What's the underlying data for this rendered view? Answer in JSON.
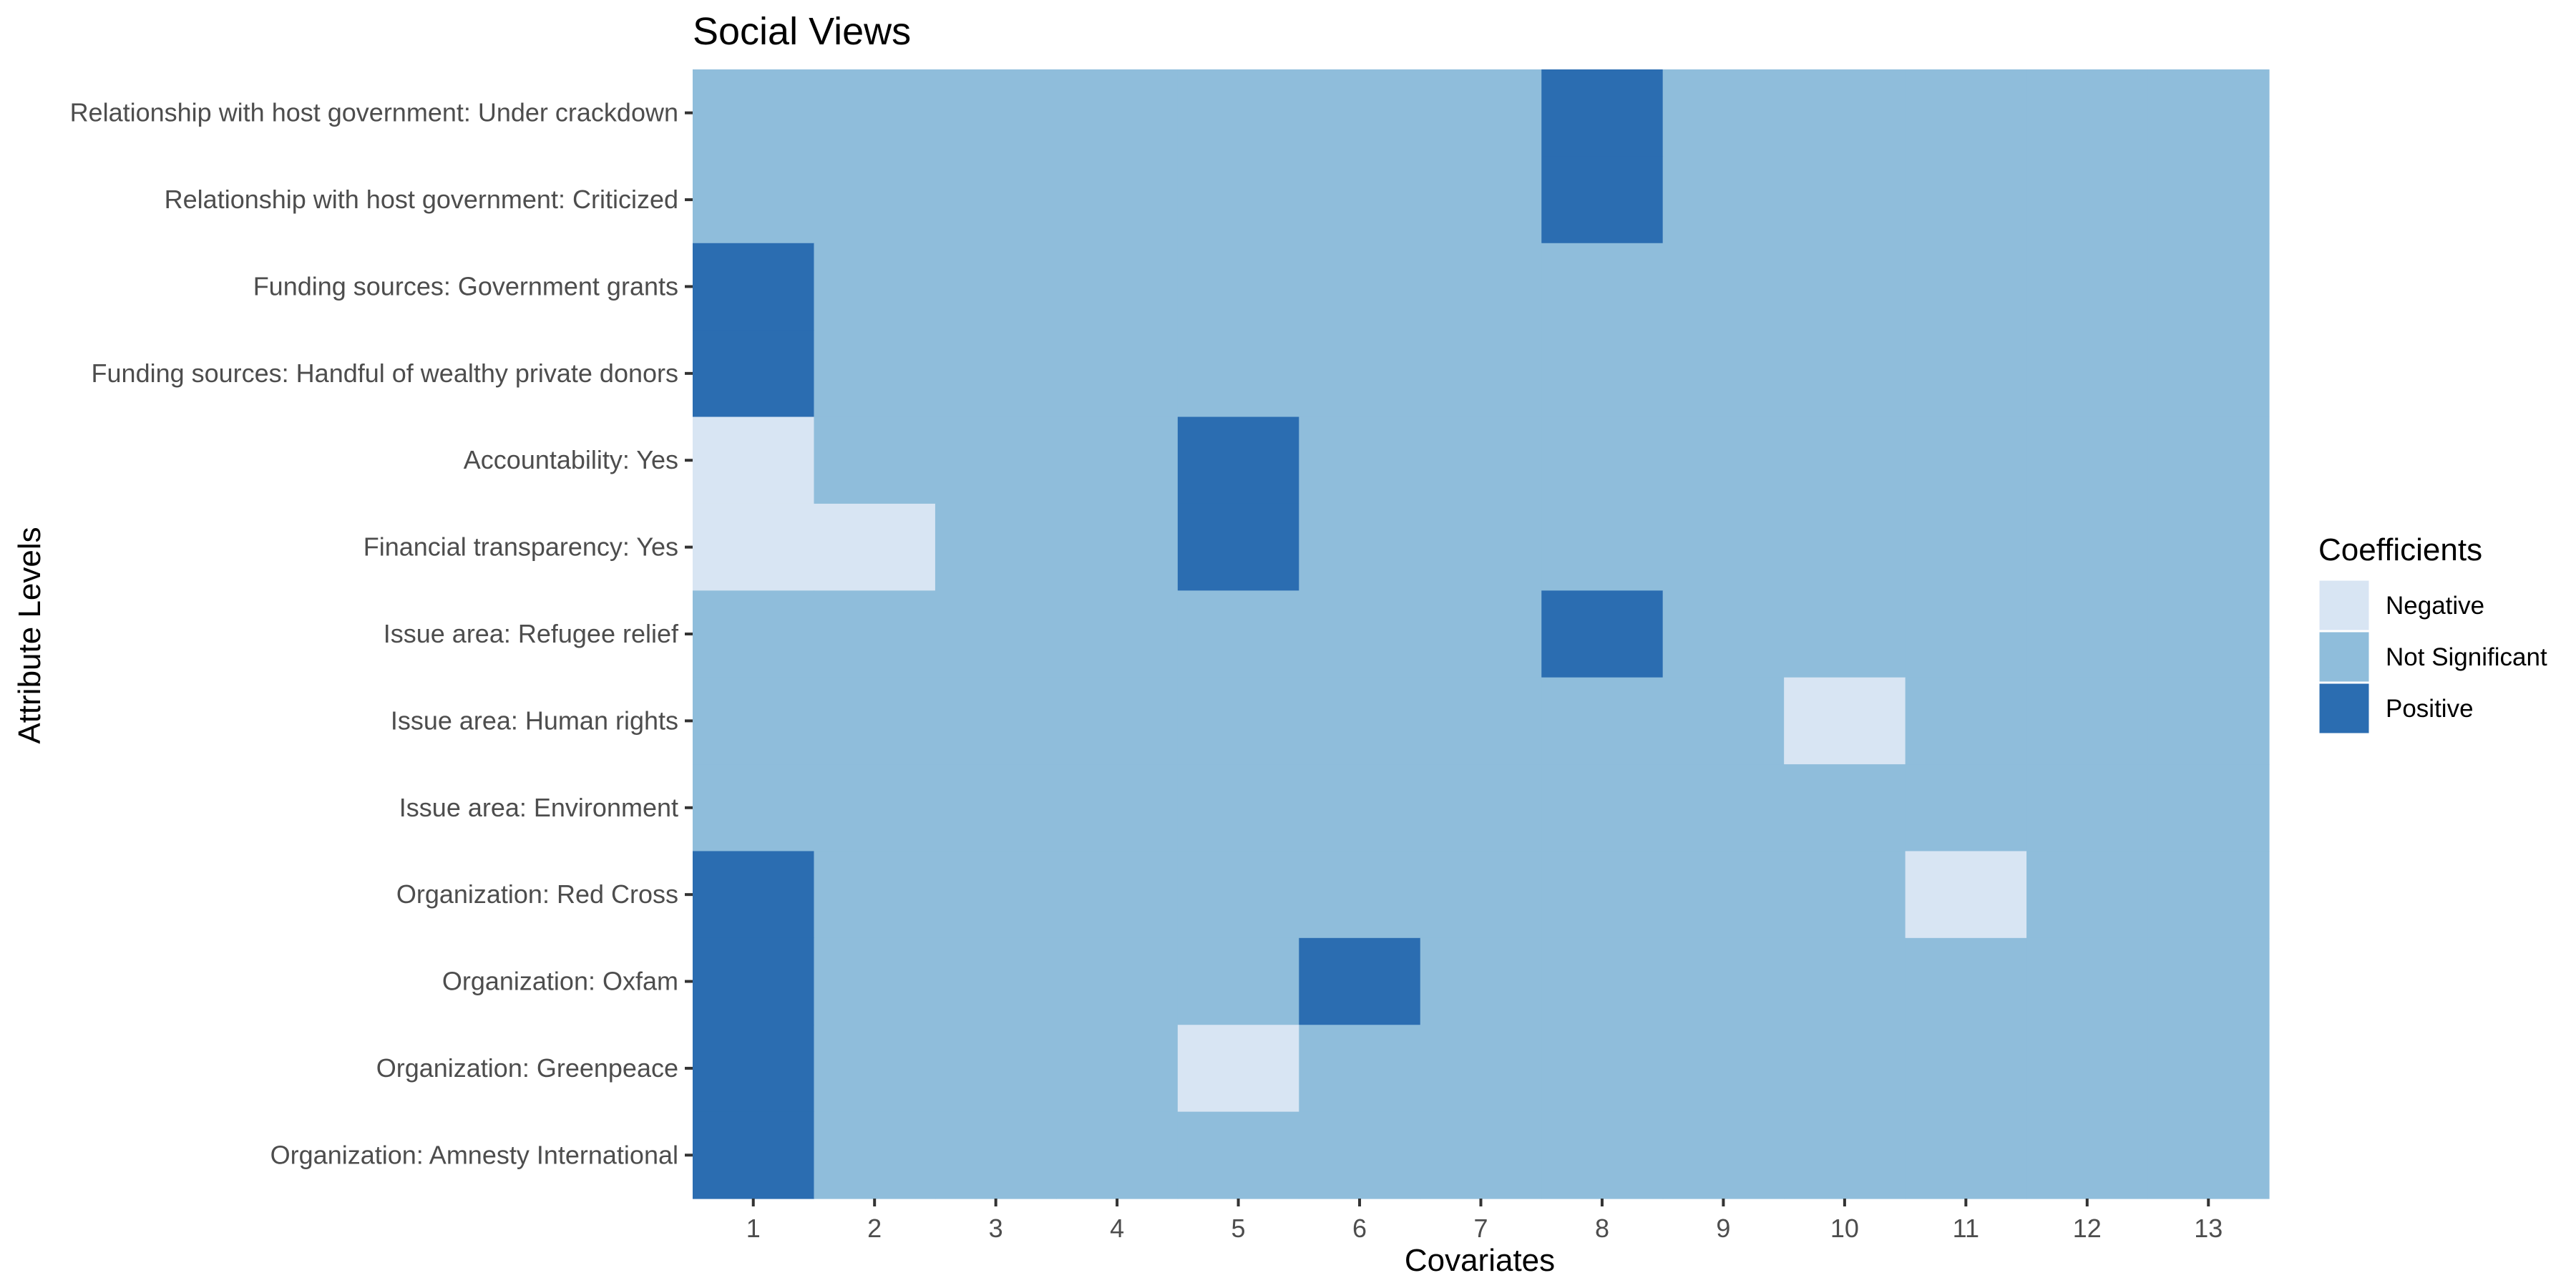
{
  "chart_data": {
    "type": "heatmap",
    "title": "Social Views",
    "xlabel": "Covariates",
    "ylabel": "Attribute Levels",
    "x_categories": [
      "1",
      "2",
      "3",
      "4",
      "5",
      "6",
      "7",
      "8",
      "9",
      "10",
      "11",
      "12",
      "13"
    ],
    "y_categories": [
      "Relationship with host government: Under crackdown",
      "Relationship with host government: Criticized",
      "Funding sources: Government grants",
      "Funding sources: Handful of wealthy private donors",
      "Accountability: Yes",
      "Financial transparency: Yes",
      "Issue area: Refugee relief",
      "Issue area: Human rights",
      "Issue area: Environment",
      "Organization: Red Cross",
      "Organization: Oxfam",
      "Organization: Greenpeace",
      "Organization: Amnesty International"
    ],
    "values": [
      [
        "Not Significant",
        "Not Significant",
        "Not Significant",
        "Not Significant",
        "Not Significant",
        "Not Significant",
        "Not Significant",
        "Positive",
        "Not Significant",
        "Not Significant",
        "Not Significant",
        "Not Significant",
        "Not Significant"
      ],
      [
        "Not Significant",
        "Not Significant",
        "Not Significant",
        "Not Significant",
        "Not Significant",
        "Not Significant",
        "Not Significant",
        "Positive",
        "Not Significant",
        "Not Significant",
        "Not Significant",
        "Not Significant",
        "Not Significant"
      ],
      [
        "Positive",
        "Not Significant",
        "Not Significant",
        "Not Significant",
        "Not Significant",
        "Not Significant",
        "Not Significant",
        "Not Significant",
        "Not Significant",
        "Not Significant",
        "Not Significant",
        "Not Significant",
        "Not Significant"
      ],
      [
        "Positive",
        "Not Significant",
        "Not Significant",
        "Not Significant",
        "Not Significant",
        "Not Significant",
        "Not Significant",
        "Not Significant",
        "Not Significant",
        "Not Significant",
        "Not Significant",
        "Not Significant",
        "Not Significant"
      ],
      [
        "Negative",
        "Not Significant",
        "Not Significant",
        "Not Significant",
        "Positive",
        "Not Significant",
        "Not Significant",
        "Not Significant",
        "Not Significant",
        "Not Significant",
        "Not Significant",
        "Not Significant",
        "Not Significant"
      ],
      [
        "Negative",
        "Negative",
        "Not Significant",
        "Not Significant",
        "Positive",
        "Not Significant",
        "Not Significant",
        "Not Significant",
        "Not Significant",
        "Not Significant",
        "Not Significant",
        "Not Significant",
        "Not Significant"
      ],
      [
        "Not Significant",
        "Not Significant",
        "Not Significant",
        "Not Significant",
        "Not Significant",
        "Not Significant",
        "Not Significant",
        "Positive",
        "Not Significant",
        "Not Significant",
        "Not Significant",
        "Not Significant",
        "Not Significant"
      ],
      [
        "Not Significant",
        "Not Significant",
        "Not Significant",
        "Not Significant",
        "Not Significant",
        "Not Significant",
        "Not Significant",
        "Not Significant",
        "Not Significant",
        "Negative",
        "Not Significant",
        "Not Significant",
        "Not Significant"
      ],
      [
        "Not Significant",
        "Not Significant",
        "Not Significant",
        "Not Significant",
        "Not Significant",
        "Not Significant",
        "Not Significant",
        "Not Significant",
        "Not Significant",
        "Not Significant",
        "Not Significant",
        "Not Significant",
        "Not Significant"
      ],
      [
        "Positive",
        "Not Significant",
        "Not Significant",
        "Not Significant",
        "Not Significant",
        "Not Significant",
        "Not Significant",
        "Not Significant",
        "Not Significant",
        "Not Significant",
        "Negative",
        "Not Significant",
        "Not Significant"
      ],
      [
        "Positive",
        "Not Significant",
        "Not Significant",
        "Not Significant",
        "Not Significant",
        "Positive",
        "Not Significant",
        "Not Significant",
        "Not Significant",
        "Not Significant",
        "Not Significant",
        "Not Significant",
        "Not Significant"
      ],
      [
        "Positive",
        "Not Significant",
        "Not Significant",
        "Not Significant",
        "Negative",
        "Not Significant",
        "Not Significant",
        "Not Significant",
        "Not Significant",
        "Not Significant",
        "Not Significant",
        "Not Significant",
        "Not Significant"
      ],
      [
        "Positive",
        "Not Significant",
        "Not Significant",
        "Not Significant",
        "Not Significant",
        "Not Significant",
        "Not Significant",
        "Not Significant",
        "Not Significant",
        "Not Significant",
        "Not Significant",
        "Not Significant",
        "Not Significant"
      ]
    ],
    "legend": {
      "title": "Coefficients",
      "position": "right",
      "items": [
        {
          "label": "Negative",
          "color": "#d8e5f3"
        },
        {
          "label": "Not Significant",
          "color": "#8fbddb"
        },
        {
          "label": "Positive",
          "color": "#2b6db1"
        }
      ]
    },
    "grid": false
  }
}
